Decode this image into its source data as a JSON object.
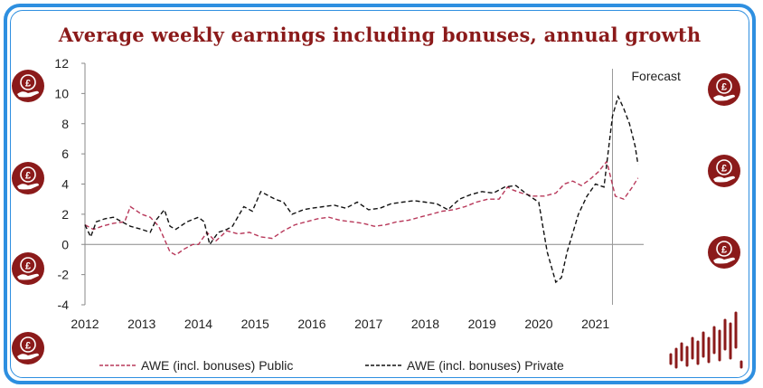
{
  "colors": {
    "frame": "#2e8fe0",
    "title": "#8b1a1a",
    "public": "#b8385a",
    "private": "#111111",
    "icon": "#8b1a1a",
    "axis": "#888888"
  },
  "icons": [
    "pound-hand-icon",
    "bar-chart-icon"
  ],
  "chart_data": {
    "type": "line",
    "title": "Average weekly earnings including bonuses, annual growth",
    "annotation": "Forecast",
    "forecast_start": 2021.3,
    "xlabel": "",
    "ylabel": "",
    "xlim": [
      2012,
      2021.85
    ],
    "ylim": [
      -4,
      12
    ],
    "x_ticks": [
      "2012",
      "2013",
      "2014",
      "2015",
      "2016",
      "2017",
      "2018",
      "2019",
      "2020",
      "2021"
    ],
    "y_ticks": [
      "12",
      "10",
      "8",
      "6",
      "4",
      "2",
      "0",
      "-2",
      "-4"
    ],
    "grid": false,
    "legend": "bottom",
    "series": [
      {
        "name": "AWE (incl. bonuses) Public",
        "style": "dashed",
        "x": [
          2012.0,
          2012.15,
          2012.3,
          2012.5,
          2012.7,
          2012.8,
          2013.0,
          2013.15,
          2013.3,
          2013.5,
          2013.6,
          2013.75,
          2013.9,
          2014.0,
          2014.15,
          2014.3,
          2014.5,
          2014.7,
          2014.9,
          2015.1,
          2015.3,
          2015.5,
          2015.7,
          2015.9,
          2016.1,
          2016.3,
          2016.5,
          2016.7,
          2016.9,
          2017.1,
          2017.3,
          2017.5,
          2017.7,
          2017.9,
          2018.1,
          2018.3,
          2018.5,
          2018.7,
          2018.9,
          2019.1,
          2019.3,
          2019.45,
          2019.55,
          2019.7,
          2019.9,
          2020.1,
          2020.3,
          2020.45,
          2020.6,
          2020.75,
          2020.9,
          2021.05,
          2021.2,
          2021.35,
          2021.5,
          2021.65,
          2021.75
        ],
        "values": [
          1.3,
          1.0,
          1.2,
          1.4,
          1.5,
          2.5,
          2.0,
          1.8,
          1.2,
          -0.5,
          -0.7,
          -0.3,
          0.0,
          0.0,
          0.8,
          0.2,
          0.9,
          0.7,
          0.8,
          0.5,
          0.4,
          0.9,
          1.3,
          1.5,
          1.7,
          1.8,
          1.6,
          1.5,
          1.4,
          1.2,
          1.3,
          1.5,
          1.6,
          1.8,
          2.0,
          2.2,
          2.3,
          2.5,
          2.8,
          3.0,
          3.0,
          3.8,
          3.6,
          3.4,
          3.2,
          3.2,
          3.4,
          4.0,
          4.2,
          3.9,
          4.3,
          4.8,
          5.5,
          3.2,
          3.0,
          3.8,
          4.4
        ]
      },
      {
        "name": "AWE (incl. bonuses) Private",
        "style": "dashed",
        "x": [
          2012.0,
          2012.1,
          2012.2,
          2012.35,
          2012.5,
          2012.65,
          2012.8,
          2013.0,
          2013.15,
          2013.25,
          2013.4,
          2013.5,
          2013.6,
          2013.8,
          2014.0,
          2014.1,
          2014.2,
          2014.35,
          2014.5,
          2014.6,
          2014.8,
          2014.95,
          2015.1,
          2015.2,
          2015.35,
          2015.5,
          2015.65,
          2015.85,
          2016.0,
          2016.2,
          2016.4,
          2016.6,
          2016.8,
          2017.0,
          2017.2,
          2017.4,
          2017.6,
          2017.8,
          2018.0,
          2018.2,
          2018.4,
          2018.6,
          2018.8,
          2019.0,
          2019.2,
          2019.4,
          2019.6,
          2019.8,
          2020.0,
          2020.15,
          2020.3,
          2020.4,
          2020.5,
          2020.7,
          2020.85,
          2021.0,
          2021.15,
          2021.3,
          2021.4,
          2021.5,
          2021.6,
          2021.7,
          2021.75
        ],
        "values": [
          1.3,
          0.5,
          1.5,
          1.7,
          1.8,
          1.5,
          1.2,
          1.0,
          0.8,
          1.6,
          2.3,
          1.2,
          1.0,
          1.5,
          1.8,
          1.5,
          0.0,
          0.8,
          1.0,
          1.2,
          2.5,
          2.2,
          3.5,
          3.3,
          3.0,
          2.8,
          2.0,
          2.3,
          2.4,
          2.5,
          2.6,
          2.4,
          2.8,
          2.3,
          2.4,
          2.7,
          2.8,
          2.9,
          2.8,
          2.7,
          2.3,
          3.0,
          3.3,
          3.5,
          3.4,
          3.8,
          3.9,
          3.3,
          2.8,
          -0.5,
          -2.5,
          -2.2,
          -0.5,
          2.0,
          3.2,
          4.0,
          3.8,
          8.5,
          9.8,
          9.0,
          8.0,
          6.5,
          5.3
        ]
      }
    ]
  }
}
